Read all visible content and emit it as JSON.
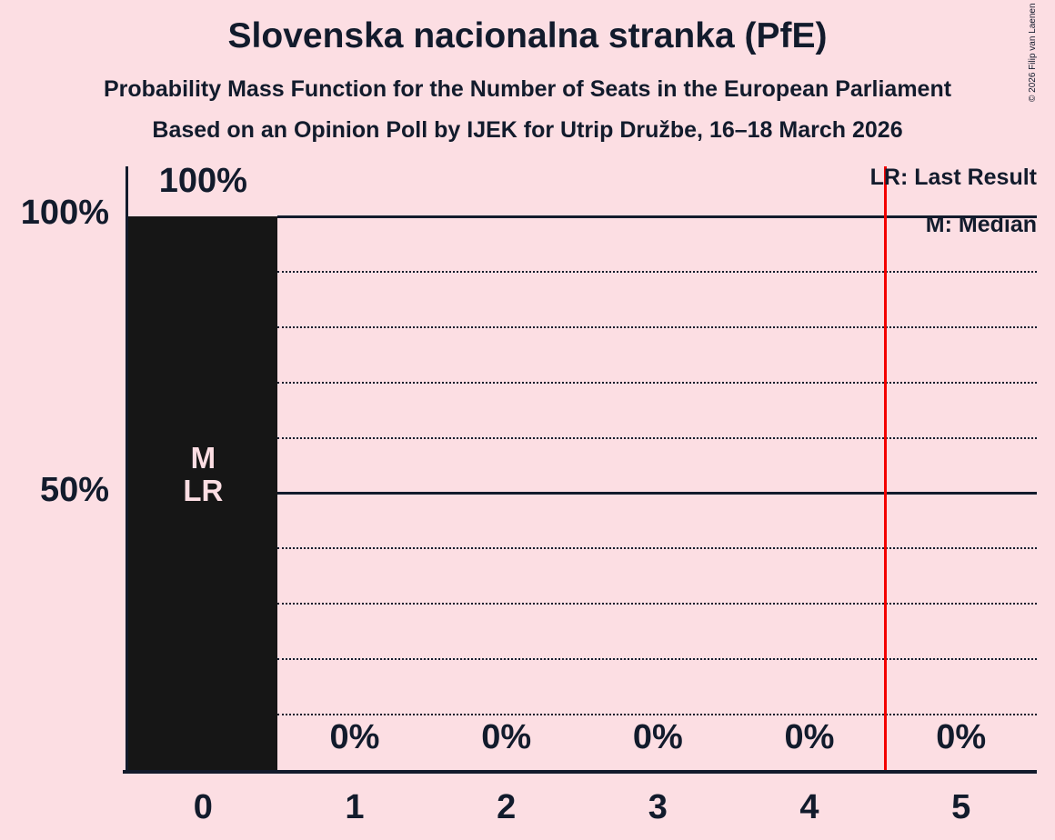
{
  "header": {
    "title": "Slovenska nacionalna stranka (PfE)",
    "subtitle": "Probability Mass Function for the Number of Seats in the European Parliament",
    "source_line": "Based on an Opinion Poll by IJEK for Utrip Družbe, 16–18 March 2026",
    "copyright": "© 2026 Filip van Laenen"
  },
  "legend": {
    "last_result": "LR: Last Result",
    "median": "M: Median"
  },
  "colors": {
    "background": "#fcdee3",
    "ink": "#121b2c",
    "bar": "#161616",
    "bar_annotation": "#fcdee3",
    "threshold_line": "#f30202"
  },
  "chart_data": {
    "type": "bar",
    "title": "Slovenska nacionalna stranka (PfE)",
    "xlabel": "",
    "ylabel": "",
    "categories": [
      "0",
      "1",
      "2",
      "3",
      "4",
      "5"
    ],
    "values": [
      100,
      0,
      0,
      0,
      0,
      0
    ],
    "value_labels": [
      "100%",
      "0%",
      "0%",
      "0%",
      "0%",
      "0%"
    ],
    "ylim": [
      0,
      109
    ],
    "y_axis": {
      "unit": "%",
      "ticks": [
        {
          "value": 100,
          "label": "100%"
        },
        {
          "value": 50,
          "label": "50%"
        }
      ],
      "solid_gridlines": [
        50,
        100
      ],
      "dotted_gridlines": [
        10,
        20,
        30,
        40,
        60,
        70,
        80,
        90
      ]
    },
    "grid": "horizontal-only",
    "bar_annotations": [
      {
        "category": "0",
        "lines": [
          "M",
          "LR"
        ]
      }
    ],
    "median_seats": 0,
    "last_result_seats": 0,
    "marker_line": {
      "x_value": 4.5,
      "color": "#f30202"
    },
    "legend": [
      "LR: Last Result",
      "M: Median"
    ],
    "legend_position": "top-right"
  }
}
